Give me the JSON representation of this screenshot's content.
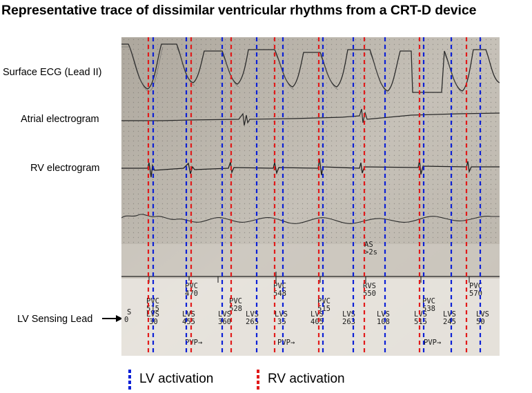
{
  "title": "Representative trace of dissimilar ventricular rhythms from a CRT-D device",
  "channel_labels": {
    "surface": "Surface ECG (Lead II)",
    "atrial": "Atrial electrogram",
    "rv": "RV electrogram",
    "lv": "LV Sensing Lead"
  },
  "legend": {
    "lv": {
      "label": "LV activation",
      "color": "#0b1fd6"
    },
    "rv": {
      "label": "RV activation",
      "color": "#e11a1a"
    }
  },
  "marker_channel": {
    "lead_start": [
      "S",
      "0"
    ],
    "events": [
      {
        "label": "PVC",
        "value": "515"
      },
      {
        "label": "LVS",
        "value": "30"
      },
      {
        "label": "PVC",
        "value": "470"
      },
      {
        "label": "LVS",
        "value": "455"
      },
      {
        "label": "PVP→",
        "value": ""
      },
      {
        "label": "PVC",
        "value": "528"
      },
      {
        "label": "LVS",
        "value": "360"
      },
      {
        "label": "LVS",
        "value": "265"
      },
      {
        "label": "PVC",
        "value": "548"
      },
      {
        "label": "LVS",
        "value": "35"
      },
      {
        "label": "PVP→",
        "value": ""
      },
      {
        "label": "PVC",
        "value": "515"
      },
      {
        "label": "LVS",
        "value": "405"
      },
      {
        "label": "LVS",
        "value": "263"
      },
      {
        "label": "AS",
        "value": ">2s"
      },
      {
        "label": "RVS",
        "value": "550"
      },
      {
        "label": "LVS",
        "value": "108"
      },
      {
        "label": "PVC",
        "value": "538"
      },
      {
        "label": "LVS",
        "value": "515"
      },
      {
        "label": "PVP→",
        "value": ""
      },
      {
        "label": "LVS",
        "value": "245"
      },
      {
        "label": "PVC",
        "value": "570"
      },
      {
        "label": "LVS",
        "value": "50"
      }
    ]
  }
}
